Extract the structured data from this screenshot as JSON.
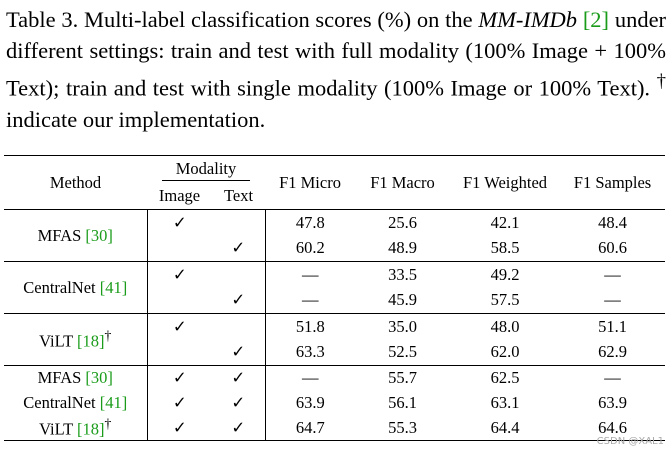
{
  "caption": {
    "label": "Table 3.",
    "text_before": "Multi-label classification scores (%) on the",
    "dataset": "MM-IMDb",
    "ref": "[2]",
    "text_after": "under different settings: train and test with full modality (100% Image + 100% Text); train and test with single modality (100% Image or 100% Text).",
    "dagger": "†",
    "note": "indicate our implementation."
  },
  "table": {
    "header": {
      "method": "Method",
      "modality": "Modality",
      "image": "Image",
      "text": "Text",
      "columns": [
        "F1 Micro",
        "F1 Macro",
        "F1 Weighted",
        "F1 Samples"
      ]
    },
    "groups": [
      {
        "method": "MFAS",
        "ref": "[30]",
        "rows": [
          {
            "image": "✓",
            "values": [
              "47.8",
              "25.6",
              "42.1",
              "48.4"
            ]
          },
          {
            "text": "✓",
            "values": [
              "60.2",
              "48.9",
              "58.5",
              "60.6"
            ]
          }
        ]
      },
      {
        "method": "CentralNet",
        "ref": "[41]",
        "rows": [
          {
            "image": "✓",
            "values": [
              "—",
              "33.5",
              "49.2",
              "—"
            ]
          },
          {
            "text": "✓",
            "values": [
              "—",
              "45.9",
              "57.5",
              "—"
            ]
          }
        ]
      },
      {
        "method": "ViLT",
        "ref": "[18]",
        "dagger": "†",
        "rows": [
          {
            "image": "✓",
            "values": [
              "51.8",
              "35.0",
              "48.0",
              "51.1"
            ]
          },
          {
            "text": "✓",
            "values": [
              "63.3",
              "52.5",
              "62.0",
              "62.9"
            ]
          }
        ]
      },
      {
        "rows": [
          {
            "method": "MFAS",
            "ref": "[30]",
            "image": "✓",
            "text": "✓",
            "values": [
              "—",
              "55.7",
              "62.5",
              "—"
            ]
          },
          {
            "method": "CentralNet",
            "ref": "[41]",
            "image": "✓",
            "text": "✓",
            "values": [
              "63.9",
              "56.1",
              "63.1",
              "63.9"
            ]
          },
          {
            "method": "ViLT",
            "ref": "[18]",
            "dagger": "†",
            "image": "✓",
            "text": "✓",
            "values": [
              "64.7",
              "55.3",
              "64.4",
              "64.6"
            ]
          }
        ]
      }
    ]
  },
  "watermark": "CSDN @XAL1"
}
